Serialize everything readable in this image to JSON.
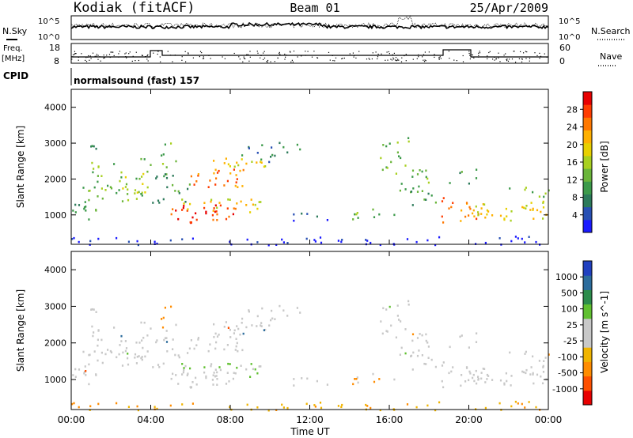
{
  "header": {
    "station": "Kodiak (fitACF)",
    "beam": "Beam 01",
    "date": "25/Apr/2009"
  },
  "panels": {
    "noise": {
      "left_label": "N.Sky",
      "right_label": "N.Search",
      "left_ticks": [
        "10^5",
        "10^0"
      ],
      "right_ticks": [
        "10^5",
        "10^0"
      ]
    },
    "freq": {
      "left_label_1": "Freq.",
      "left_label_2": "[MHz]",
      "right_label": "Nave",
      "left_ticks": [
        "18",
        "8"
      ],
      "right_ticks": [
        "60",
        "0"
      ]
    },
    "cpid": {
      "label": "CPID",
      "program": "normalsound (fast) 157"
    }
  },
  "chart_data": [
    {
      "type": "heatmap",
      "title": "",
      "ylabel": "Slant Range [km]",
      "xlabel": "",
      "ylim": [
        180,
        4500
      ],
      "xlim": [
        "00:00",
        "00:00"
      ],
      "yticks": [
        "1000",
        "2000",
        "3000",
        "4000"
      ],
      "colorbar": {
        "label": "Power [dB]",
        "ticks": [
          "28",
          "24",
          "20",
          "16",
          "12",
          "8",
          "4"
        ],
        "colors": [
          "#1a1aff",
          "#2850b4",
          "#2c7a5a",
          "#3c9a4a",
          "#6ab53a",
          "#a8d020",
          "#e8d000",
          "#ffb000",
          "#ff7800",
          "#ff3c00",
          "#e80000"
        ]
      }
    },
    {
      "type": "heatmap",
      "title": "",
      "ylabel": "Slant Range [km]",
      "xlabel": "Time UT",
      "ylim": [
        180,
        4500
      ],
      "xlim": [
        "00:00",
        "00:00"
      ],
      "yticks": [
        "1000",
        "2000",
        "3000",
        "4000"
      ],
      "xticks": [
        "00:00",
        "04:00",
        "08:00",
        "12:00",
        "16:00",
        "20:00",
        "00:00"
      ],
      "colorbar": {
        "label": "Velocity [m s^-1]",
        "ticks": [
          "1000",
          "500",
          "100",
          "25",
          "-25",
          "-100",
          "-500",
          "-1000"
        ],
        "colors": [
          "#e80000",
          "#ff5000",
          "#ff8c00",
          "#f0b400",
          "#c8c8c8",
          "#c8c8c8",
          "#60c030",
          "#2c8c4c",
          "#2c6c9c",
          "#2040c0"
        ]
      }
    }
  ]
}
